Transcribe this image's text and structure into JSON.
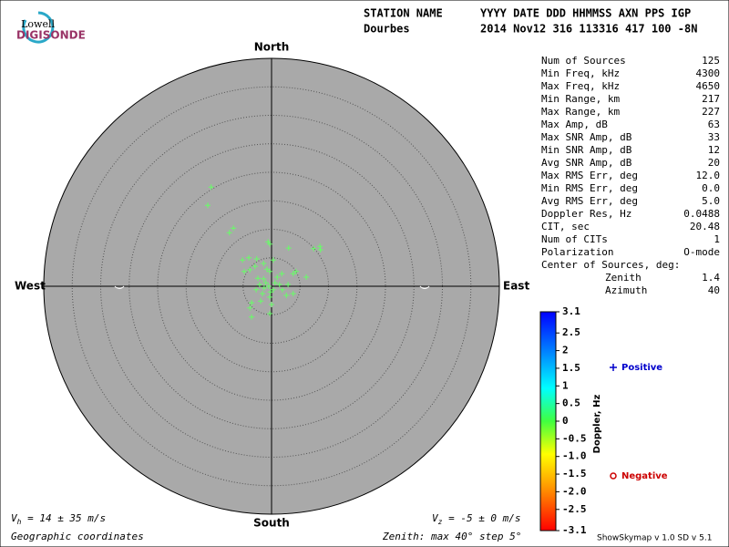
{
  "logo": {
    "top": "Lowell",
    "bottom": "DIGISONDE"
  },
  "header": {
    "label_left": "STATION NAME",
    "label_right": "YYYY DATE  DDD HHMMSS AXN PPS IGP",
    "station": "Dourbes",
    "values": "2014 Nov12 316 113316 417 100 -8N"
  },
  "stats": {
    "rows": [
      [
        "Num of Sources",
        "125"
      ],
      [
        "Min Freq, kHz",
        "4300"
      ],
      [
        "Max Freq, kHz",
        "4650"
      ],
      [
        "Min Range, km",
        "217"
      ],
      [
        "Max Range, km",
        "227"
      ],
      [
        "Max Amp, dB",
        "63"
      ],
      [
        "Max SNR Amp, dB",
        "33"
      ],
      [
        "Min SNR Amp, dB",
        "12"
      ],
      [
        "Avg SNR Amp, dB",
        "20"
      ],
      [
        "Max RMS Err, deg",
        "12.0"
      ],
      [
        "Min RMS Err, deg",
        "0.0"
      ],
      [
        "Avg RMS Err, deg",
        "5.0"
      ],
      [
        "Doppler Res, Hz",
        "0.0488"
      ],
      [
        "CIT, sec",
        "20.48"
      ],
      [
        "Num of CITs",
        "1"
      ],
      [
        "Polarization",
        "O-mode"
      ]
    ],
    "center_title": "Center of Sources, deg:",
    "center_rows": [
      [
        "Zenith",
        "1.4"
      ],
      [
        "Azimuth",
        "40"
      ]
    ]
  },
  "chart_data": {
    "type": "scatter",
    "directions": {
      "north": "North",
      "south": "South",
      "east": "East",
      "west": "West"
    },
    "xlim": [
      -40,
      40
    ],
    "ylim": [
      -40,
      40
    ],
    "rticks": [
      5,
      10,
      15,
      20,
      25,
      30,
      35,
      40
    ],
    "series": [
      {
        "name": "Positive",
        "color": "#66ff66",
        "legend_color": "#0000cc",
        "x": [
          -10.6,
          -11.2,
          -6.7,
          -7.4,
          -0.6,
          -0.3,
          3.0,
          8.5,
          7.4,
          8.6,
          -4.0,
          -2.6,
          -5.1,
          -1.4,
          0.3,
          -2.9,
          -4.8,
          -3.8,
          4.3,
          3.8,
          6.1,
          1.8,
          -0.3,
          1.0,
          -1.4,
          -2.1,
          -1.3,
          -0.5,
          0.3,
          -2.7,
          1.9,
          2.9,
          3.8,
          2.6,
          -1.6,
          -0.3,
          -1.9,
          -3.5,
          -3.8,
          -3.5,
          -0.3,
          0,
          -1.0,
          0.6,
          -2.4,
          -0.8,
          1.4,
          -0.2
        ],
        "values": [
          17.4,
          14.2,
          10.2,
          9.4,
          7.8,
          7.4,
          6.7,
          7.0,
          6.6,
          6.4,
          5.0,
          4.8,
          4.6,
          4.0,
          4.6,
          3.5,
          2.6,
          2.9,
          2.6,
          2.2,
          1.6,
          2.2,
          2.6,
          1.6,
          1.3,
          0.3,
          -0.3,
          0,
          -0.6,
          -0.6,
          -0.6,
          0.3,
          -1.3,
          -1.6,
          -1.3,
          -1.9,
          -2.6,
          -2.9,
          -3.8,
          -5.4,
          -4.8,
          -3.2,
          0.6,
          0.6,
          1.4,
          3.0,
          0.3,
          -1.0
        ]
      },
      {
        "name": "Negative",
        "color": "#ff0000",
        "legend_color": "#cc0000",
        "x": [],
        "values": []
      }
    ],
    "colorbar": {
      "label": "Doppler, Hz",
      "lim": [
        -3.1,
        3.1
      ],
      "ticks": [
        3.1,
        2.5,
        {
          "value": 2,
          "label": "2"
        },
        1.5,
        1,
        0.5,
        0,
        -0.5,
        {
          "value": -1,
          "label": "-1.0"
        },
        -1.5,
        {
          "value": -2,
          "label": "-2.0"
        },
        -2.5,
        -3.1
      ]
    },
    "vh": {
      "symbol": "V",
      "sub": "h",
      "text": " = 14 ± 35 m/s"
    },
    "vz": {
      "symbol": "V",
      "sub": "z",
      "text": " = -5 ± 0 m/s"
    },
    "coords": "Geographic coordinates",
    "zenith_note": "Zenith: max 40°  step 5°",
    "version": "ShowSkymap v 1.0  SD v 5.1"
  }
}
